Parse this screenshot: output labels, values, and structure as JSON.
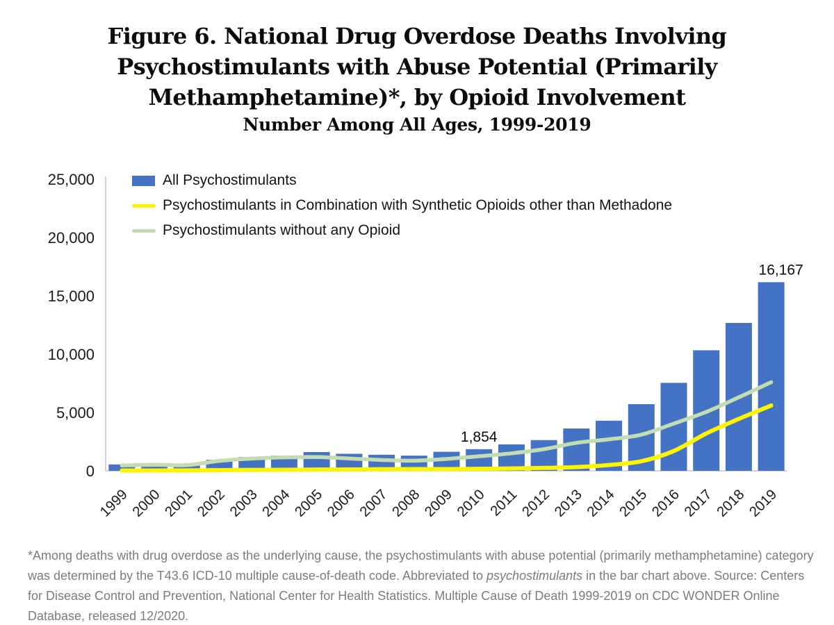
{
  "title": {
    "lines": [
      "Figure 6. National Drug Overdose Deaths Involving",
      "Psychostimulants with Abuse Potential (Primarily",
      "Methamphetamine)*, by Opioid Involvement"
    ],
    "subtitle": "Number Among All Ages, 1999-2019"
  },
  "legend": {
    "items": [
      {
        "label": "All Psychostimulants",
        "type": "bar",
        "color": "#4472C4"
      },
      {
        "label": "Psychostimulants in Combination with Synthetic Opioids other than Methadone",
        "type": "line",
        "color": "#FDF403"
      },
      {
        "label": "Psychostimulants without any Opioid",
        "type": "line",
        "color": "#C5DCB0"
      }
    ]
  },
  "chart_data": {
    "type": "bar",
    "title": "Figure 6. National Drug Overdose Deaths Involving Psychostimulants with Abuse Potential (Primarily Methamphetamine)*, by Opioid Involvement — Number Among All Ages, 1999-2019",
    "categories": [
      1999,
      2000,
      2001,
      2002,
      2003,
      2004,
      2005,
      2006,
      2007,
      2008,
      2009,
      2010,
      2011,
      2012,
      2013,
      2014,
      2015,
      2016,
      2017,
      2018,
      2019
    ],
    "series": [
      {
        "name": "All Psychostimulants",
        "type": "bar",
        "color": "#4472C4",
        "values": [
          547,
          578,
          563,
          941,
          1179,
          1305,
          1608,
          1462,
          1378,
          1302,
          1632,
          1854,
          2266,
          2635,
          3627,
          4298,
          5716,
          7542,
          10333,
          12676,
          16167
        ]
      },
      {
        "name": "Psychostimulants in Combination with Synthetic Opioids other than Methadone",
        "type": "line",
        "color": "#FDF403",
        "values": [
          30,
          30,
          40,
          60,
          80,
          90,
          110,
          120,
          140,
          150,
          150,
          170,
          200,
          250,
          320,
          500,
          820,
          1700,
          3200,
          4450,
          5600
        ]
      },
      {
        "name": "Psychostimulants without any Opioid",
        "type": "line",
        "color": "#C5DCB0",
        "values": [
          460,
          520,
          490,
          850,
          1050,
          1150,
          1180,
          1060,
          930,
          870,
          1020,
          1250,
          1500,
          1860,
          2400,
          2700,
          3100,
          4050,
          5050,
          6300,
          7600
        ]
      }
    ],
    "ylim": [
      0,
      25000
    ],
    "yticks": [
      {
        "value": 0,
        "label": "0"
      },
      {
        "value": 5000,
        "label": "5,000"
      },
      {
        "value": 10000,
        "label": "10,000"
      },
      {
        "value": 15000,
        "label": "15,000"
      },
      {
        "value": 20000,
        "label": "20,000"
      },
      {
        "value": 25000,
        "label": "25,000"
      }
    ],
    "grid": false,
    "legend_position": "inside-top-left",
    "annotations": [
      {
        "category": 2010,
        "series": "All Psychostimulants",
        "text": "1,854"
      },
      {
        "category": 2019,
        "series": "All Psychostimulants",
        "text": "16,167"
      }
    ]
  },
  "footnote": {
    "segments": [
      {
        "text": "*Among deaths with drug overdose as the underlying cause, the psychostimulants with abuse potential (primarily methamphetamine) category was determined by the T43.6 ICD-10 multiple cause-of-death code. Abbreviated to ",
        "italic": false
      },
      {
        "text": "psychostimulants",
        "italic": true
      },
      {
        "text": " in the bar chart above. Source: Centers for Disease Control and Prevention, National Center for Health Statistics. Multiple Cause of Death 1999-2019 on CDC WONDER Online Database, released 12/2020.",
        "italic": false
      }
    ]
  },
  "colors": {
    "bar_blue": "#4472C4",
    "line_yellow": "#FDF403",
    "line_green": "#C5DCB0",
    "axis_gray": "#C9C9C9",
    "footnote_gray": "#7A7C7F",
    "text_black": "#0C0C0C"
  }
}
